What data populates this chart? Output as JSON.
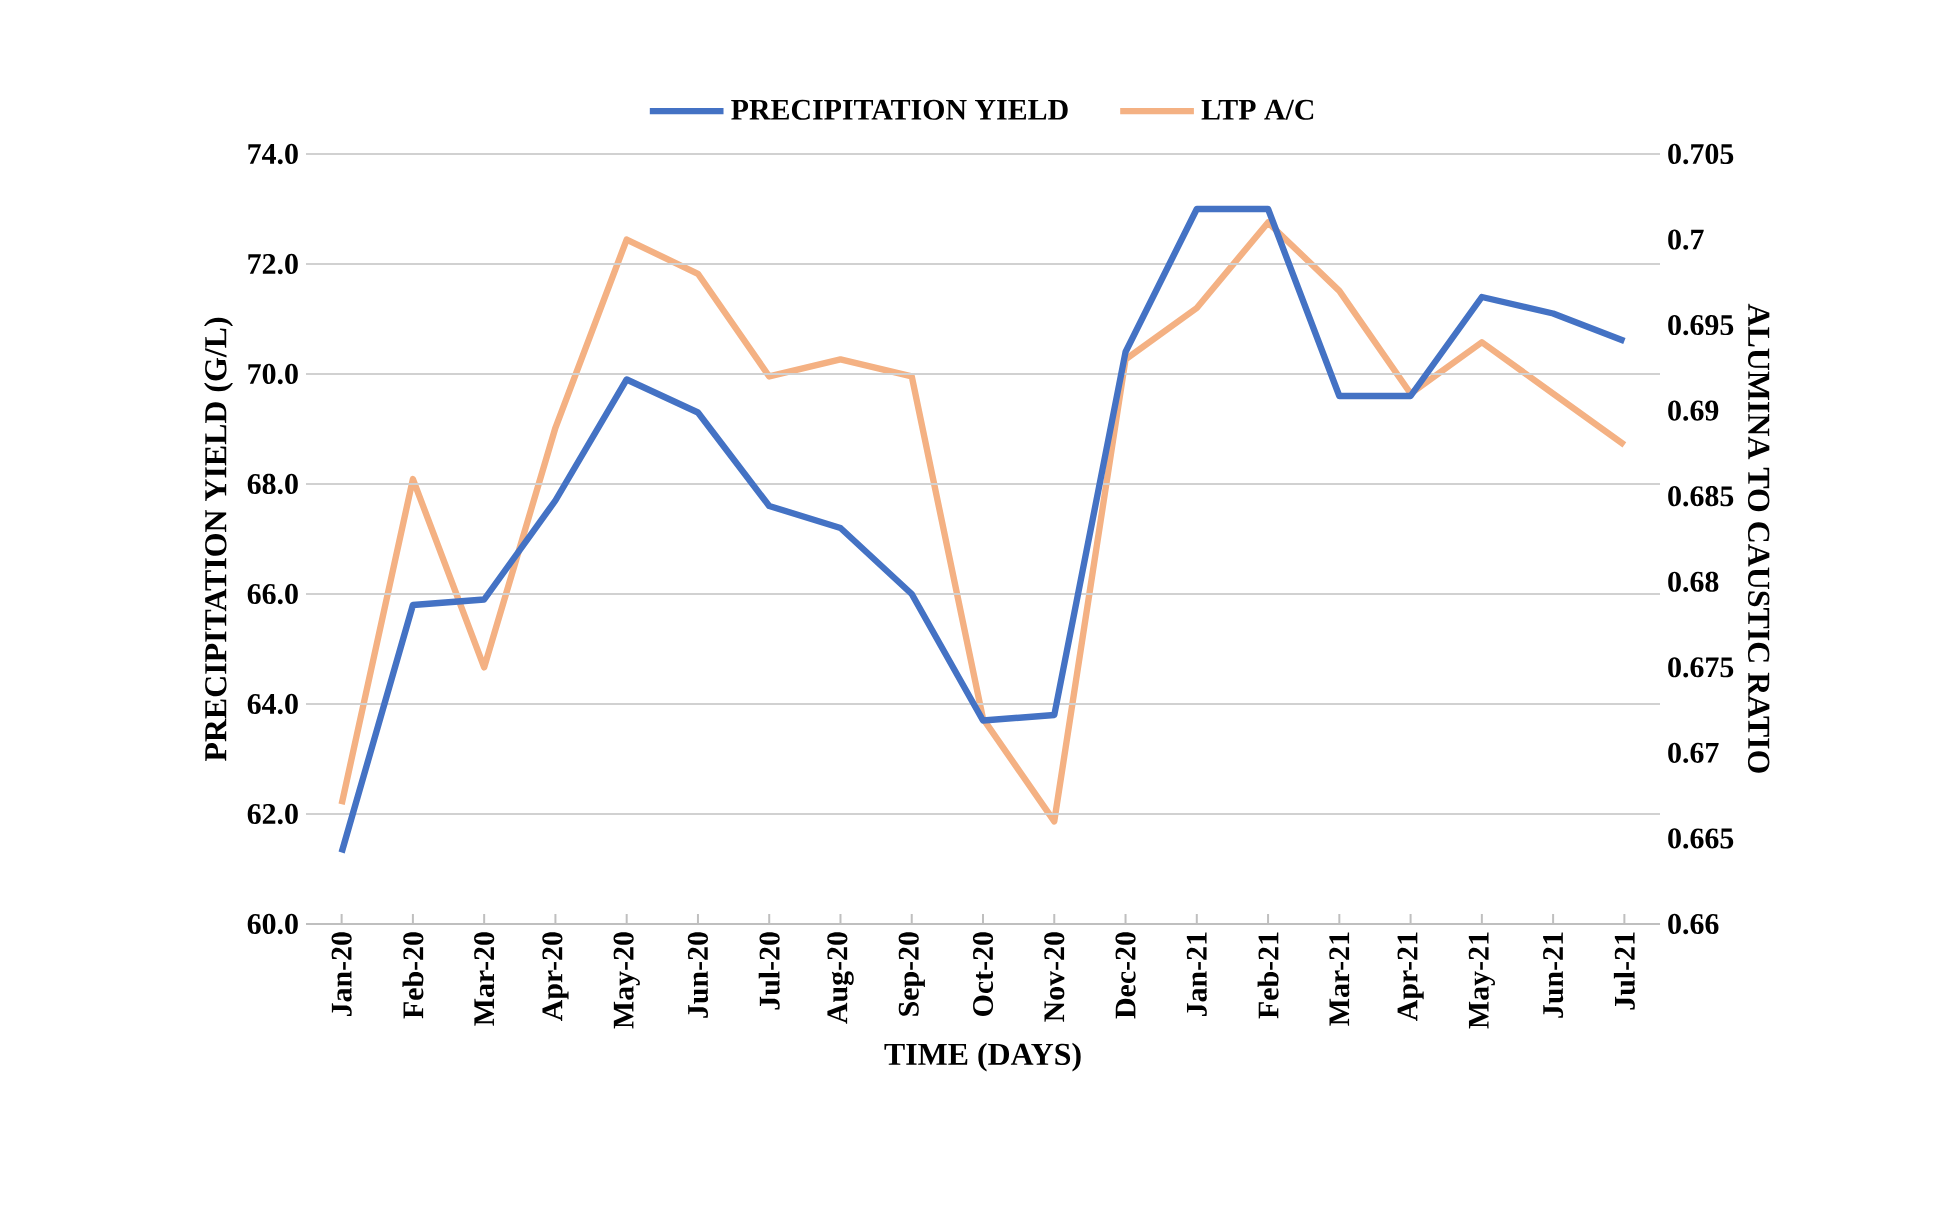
{
  "chart_data": {
    "type": "line",
    "xlabel": "TIME (DAYS)",
    "ylabel": "PRECIPITATION YIELD (G/L)",
    "y2label": "ALUMINA TO CAUSTIC RATIO",
    "categories": [
      "Jan-20",
      "Feb-20",
      "Mar-20",
      "Apr-20",
      "May-20",
      "Jun-20",
      "Jul-20",
      "Aug-20",
      "Sep-20",
      "Oct-20",
      "Nov-20",
      "Dec-20",
      "Jan-21",
      "Feb-21",
      "Mar-21",
      "Apr-21",
      "May-21",
      "Jun-21",
      "Jul-21"
    ],
    "series": [
      {
        "name": "PRECIPITATION YIELD",
        "color": "#4472c4",
        "values": [
          61.3,
          65.8,
          65.9,
          67.7,
          69.9,
          69.3,
          67.6,
          67.2,
          66.0,
          63.7,
          63.8,
          70.4,
          73.0,
          73.0,
          69.6,
          69.6,
          71.4,
          71.1,
          70.6
        ]
      },
      {
        "name": "LTP A/C",
        "color": "#f4b183",
        "axis": "y2",
        "values": [
          0.667,
          0.686,
          0.675,
          0.689,
          0.7,
          0.698,
          0.692,
          0.693,
          0.692,
          0.672,
          0.666,
          0.693,
          0.696,
          0.701,
          0.697,
          0.691,
          0.694,
          0.691,
          0.688
        ]
      }
    ],
    "ylim": [
      60,
      74
    ],
    "yticks": [
      {
        "value": 60,
        "label": "60.0"
      },
      {
        "value": 62,
        "label": "62.0"
      },
      {
        "value": 64,
        "label": "64.0"
      },
      {
        "value": 66,
        "label": "66.0"
      },
      {
        "value": 68,
        "label": "68.0"
      },
      {
        "value": 70,
        "label": "70.0"
      },
      {
        "value": 72,
        "label": "72.0"
      },
      {
        "value": 74,
        "label": "74.0"
      }
    ],
    "y2lim": [
      0.66,
      0.705
    ],
    "y2ticks": [
      0.66,
      0.665,
      0.67,
      0.675,
      0.68,
      0.685,
      0.69,
      0.695,
      0.7,
      0.705
    ],
    "grid": "y",
    "legend": "top",
    "marker": "none",
    "line_style": "solid"
  }
}
